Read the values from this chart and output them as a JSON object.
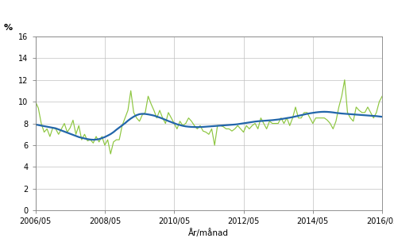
{
  "xlabel": "År/månad",
  "ylabel_text": "%",
  "line_color": "#8dc63f",
  "trend_color": "#2266aa",
  "ylim": [
    0,
    16
  ],
  "yticks": [
    0,
    2,
    4,
    6,
    8,
    10,
    12,
    14,
    16
  ],
  "xtick_labels": [
    "2006/05",
    "2008/05",
    "2010/05",
    "2012/05",
    "2014/05",
    "2016/05"
  ],
  "raw_values": [
    10.0,
    9.4,
    8.0,
    7.2,
    7.5,
    6.8,
    7.6,
    7.5,
    7.0,
    7.5,
    8.0,
    7.2,
    7.6,
    8.3,
    7.0,
    7.8,
    6.5,
    7.0,
    6.4,
    6.5,
    6.2,
    6.8,
    6.3,
    6.8,
    6.0,
    6.5,
    5.2,
    6.3,
    6.5,
    6.5,
    7.8,
    8.5,
    9.2,
    11.0,
    9.0,
    8.5,
    8.2,
    8.8,
    9.0,
    10.5,
    9.8,
    9.2,
    8.5,
    9.2,
    8.5,
    8.0,
    9.0,
    8.5,
    8.0,
    7.5,
    8.2,
    7.8,
    8.0,
    8.5,
    8.2,
    7.8,
    7.5,
    7.8,
    7.3,
    7.2,
    7.0,
    7.5,
    6.0,
    7.8,
    7.8,
    7.7,
    7.5,
    7.5,
    7.3,
    7.5,
    7.8,
    7.5,
    7.2,
    7.8,
    7.5,
    7.8,
    8.0,
    7.5,
    8.5,
    8.0,
    7.5,
    8.2,
    8.0,
    8.0,
    8.0,
    8.5,
    8.0,
    8.5,
    7.8,
    8.5,
    9.5,
    8.5,
    8.5,
    9.0,
    9.0,
    8.5,
    8.0,
    8.5,
    8.5,
    8.5,
    8.5,
    8.3,
    8.0,
    7.5,
    8.2,
    9.5,
    10.5,
    12.0,
    9.0,
    8.5,
    8.2,
    9.5,
    9.2,
    9.0,
    9.0,
    9.5,
    9.0,
    8.5,
    9.0,
    10.0,
    10.5
  ],
  "trend_values": [
    7.9,
    7.85,
    7.8,
    7.75,
    7.7,
    7.65,
    7.6,
    7.55,
    7.45,
    7.35,
    7.25,
    7.15,
    7.05,
    6.95,
    6.85,
    6.75,
    6.68,
    6.62,
    6.56,
    6.52,
    6.5,
    6.52,
    6.56,
    6.65,
    6.75,
    6.88,
    7.02,
    7.2,
    7.42,
    7.62,
    7.82,
    8.02,
    8.25,
    8.45,
    8.62,
    8.76,
    8.85,
    8.88,
    8.87,
    8.83,
    8.78,
    8.72,
    8.63,
    8.54,
    8.44,
    8.33,
    8.22,
    8.12,
    8.02,
    7.92,
    7.85,
    7.78,
    7.73,
    7.7,
    7.68,
    7.67,
    7.66,
    7.67,
    7.68,
    7.7,
    7.72,
    7.74,
    7.76,
    7.78,
    7.8,
    7.82,
    7.84,
    7.86,
    7.88,
    7.9,
    7.93,
    7.97,
    8.01,
    8.05,
    8.09,
    8.13,
    8.17,
    8.2,
    8.22,
    8.24,
    8.26,
    8.28,
    8.3,
    8.33,
    8.36,
    8.4,
    8.44,
    8.49,
    8.53,
    8.58,
    8.64,
    8.7,
    8.76,
    8.82,
    8.88,
    8.93,
    8.97,
    9.01,
    9.04,
    9.06,
    9.07,
    9.06,
    9.04,
    9.01,
    8.97,
    8.94,
    8.91,
    8.89,
    8.87,
    8.85,
    8.83,
    8.81,
    8.79,
    8.77,
    8.75,
    8.73,
    8.71,
    8.69,
    8.67,
    8.64,
    8.61
  ],
  "background_color": "#ffffff",
  "grid_color": "#c0c0c0"
}
